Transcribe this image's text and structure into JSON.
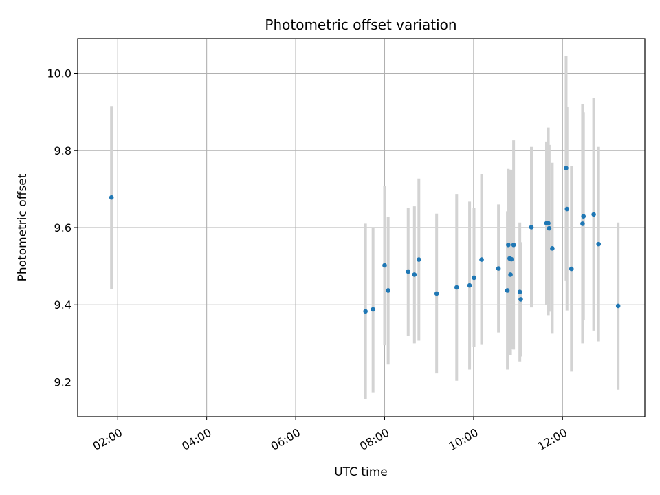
{
  "chart_data": {
    "type": "scatter",
    "title": "Photometric offset variation",
    "xlabel": "UTC time",
    "ylabel": "Photometric offset",
    "x_unit": "hours UTC",
    "xlim": [
      1.1,
      13.85
    ],
    "ylim": [
      9.11,
      10.09
    ],
    "x_ticks": [
      {
        "value": 2,
        "label": "02:00"
      },
      {
        "value": 4,
        "label": "04:00"
      },
      {
        "value": 6,
        "label": "06:00"
      },
      {
        "value": 8,
        "label": "08:00"
      },
      {
        "value": 10,
        "label": "10:00"
      },
      {
        "value": 12,
        "label": "12:00"
      }
    ],
    "y_ticks": [
      {
        "value": 9.2,
        "label": "9.2"
      },
      {
        "value": 9.4,
        "label": "9.4"
      },
      {
        "value": 9.6,
        "label": "9.6"
      },
      {
        "value": 9.8,
        "label": "9.8"
      },
      {
        "value": 10.0,
        "label": "10.0"
      }
    ],
    "grid": true,
    "colors": {
      "point": "#1f77b4",
      "errorbar": "#d3d3d3",
      "grid": "#b0b0b0"
    },
    "points": [
      {
        "x": 1.86,
        "y": 9.678,
        "lo": 9.44,
        "hi": 9.915
      },
      {
        "x": 7.57,
        "y": 9.383,
        "lo": 9.155,
        "hi": 9.61
      },
      {
        "x": 7.74,
        "y": 9.388,
        "lo": 9.173,
        "hi": 9.6
      },
      {
        "x": 8.0,
        "y": 9.502,
        "lo": 9.295,
        "hi": 9.708
      },
      {
        "x": 8.08,
        "y": 9.437,
        "lo": 9.245,
        "hi": 9.628
      },
      {
        "x": 8.53,
        "y": 9.486,
        "lo": 9.32,
        "hi": 9.65
      },
      {
        "x": 8.67,
        "y": 9.478,
        "lo": 9.3,
        "hi": 9.655
      },
      {
        "x": 8.77,
        "y": 9.517,
        "lo": 9.307,
        "hi": 9.727
      },
      {
        "x": 9.17,
        "y": 9.429,
        "lo": 9.222,
        "hi": 9.636
      },
      {
        "x": 9.62,
        "y": 9.445,
        "lo": 9.203,
        "hi": 9.687
      },
      {
        "x": 9.91,
        "y": 9.45,
        "lo": 9.232,
        "hi": 9.667
      },
      {
        "x": 10.01,
        "y": 9.47,
        "lo": 9.29,
        "hi": 9.65
      },
      {
        "x": 10.18,
        "y": 9.517,
        "lo": 9.296,
        "hi": 9.739
      },
      {
        "x": 10.56,
        "y": 9.494,
        "lo": 9.328,
        "hi": 9.66
      },
      {
        "x": 10.76,
        "y": 9.437,
        "lo": 9.232,
        "hi": 9.642
      },
      {
        "x": 10.78,
        "y": 9.555,
        "lo": 9.358,
        "hi": 9.752
      },
      {
        "x": 10.81,
        "y": 9.52,
        "lo": 9.29,
        "hi": 9.75
      },
      {
        "x": 10.83,
        "y": 9.478,
        "lo": 9.27,
        "hi": 9.686
      },
      {
        "x": 10.85,
        "y": 9.518,
        "lo": 9.285,
        "hi": 9.75
      },
      {
        "x": 10.9,
        "y": 9.555,
        "lo": 9.284,
        "hi": 9.826
      },
      {
        "x": 11.04,
        "y": 9.433,
        "lo": 9.253,
        "hi": 9.613
      },
      {
        "x": 11.06,
        "y": 9.414,
        "lo": 9.266,
        "hi": 9.562
      },
      {
        "x": 11.3,
        "y": 9.601,
        "lo": 9.393,
        "hi": 9.809
      },
      {
        "x": 11.64,
        "y": 9.611,
        "lo": 9.399,
        "hi": 9.823
      },
      {
        "x": 11.68,
        "y": 9.611,
        "lo": 9.373,
        "hi": 9.859
      },
      {
        "x": 11.7,
        "y": 9.598,
        "lo": 9.382,
        "hi": 9.814
      },
      {
        "x": 11.77,
        "y": 9.546,
        "lo": 9.325,
        "hi": 9.768
      },
      {
        "x": 12.08,
        "y": 9.754,
        "lo": 9.463,
        "hi": 10.045
      },
      {
        "x": 12.1,
        "y": 9.648,
        "lo": 9.385,
        "hi": 9.912
      },
      {
        "x": 12.2,
        "y": 9.493,
        "lo": 9.227,
        "hi": 9.759
      },
      {
        "x": 12.45,
        "y": 9.61,
        "lo": 9.3,
        "hi": 9.92
      },
      {
        "x": 12.47,
        "y": 9.629,
        "lo": 9.36,
        "hi": 9.899
      },
      {
        "x": 12.7,
        "y": 9.634,
        "lo": 9.333,
        "hi": 9.936
      },
      {
        "x": 12.81,
        "y": 9.557,
        "lo": 9.305,
        "hi": 9.809
      },
      {
        "x": 13.25,
        "y": 9.397,
        "lo": 9.18,
        "hi": 9.613
      }
    ]
  }
}
